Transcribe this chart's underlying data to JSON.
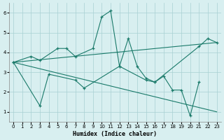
{
  "xlabel": "Humidex (Indice chaleur)",
  "line1_x": [
    0,
    2,
    3,
    5,
    6,
    7,
    9,
    10,
    11,
    12,
    13,
    14,
    15,
    16,
    21,
    22,
    23
  ],
  "line1_y": [
    3.5,
    3.8,
    3.6,
    4.2,
    4.2,
    3.8,
    4.2,
    5.8,
    6.1,
    3.3,
    4.7,
    3.3,
    2.7,
    2.5,
    4.3,
    4.7,
    4.5
  ],
  "line2_x": [
    0,
    3,
    4,
    7,
    8,
    12,
    15,
    16,
    17,
    18,
    19,
    20,
    21
  ],
  "line2_y": [
    3.5,
    1.3,
    2.9,
    2.6,
    2.2,
    3.3,
    2.6,
    2.5,
    2.8,
    2.1,
    2.1,
    0.8,
    2.5
  ],
  "trend1_x": [
    0,
    23
  ],
  "trend1_y": [
    3.5,
    4.5
  ],
  "trend2_x": [
    0,
    23
  ],
  "trend2_y": [
    3.5,
    1.0
  ],
  "ylim": [
    0.5,
    6.5
  ],
  "xlim": [
    -0.5,
    23.5
  ],
  "yticks": [
    1,
    2,
    3,
    4,
    5,
    6
  ],
  "xticks": [
    0,
    1,
    2,
    3,
    4,
    5,
    6,
    7,
    8,
    9,
    10,
    11,
    12,
    13,
    14,
    15,
    16,
    17,
    18,
    19,
    20,
    21,
    22,
    23
  ],
  "line_color": "#1a7a6a",
  "bg_color": "#d8eff0",
  "grid_color": "#a8d0d2",
  "fig_bg": "#d8eff0"
}
